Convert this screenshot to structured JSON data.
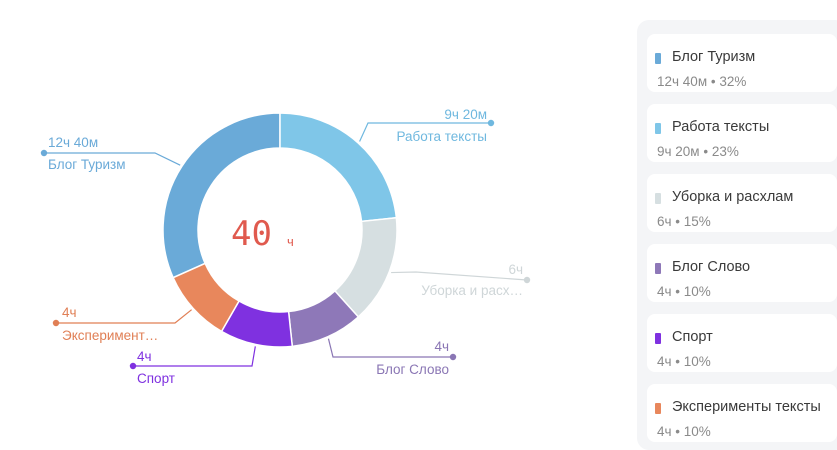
{
  "chart_data": {
    "type": "pie",
    "variant": "donut",
    "total": {
      "number": "40",
      "unit": "ч"
    },
    "segments": [
      {
        "name": "Блог Туризм",
        "label": "Блог Туризм",
        "hours": 12.67,
        "duration": "12ч 40м",
        "percent": 32,
        "color": "#6aaad8",
        "label_color": "#6aaad8"
      },
      {
        "name": "Работа тексты",
        "label": "Работа тексты",
        "hours": 9.33,
        "duration": "9ч 20м",
        "percent": 23,
        "color": "#7fc6e8",
        "label_color": "#6fb8df"
      },
      {
        "name": "Уборка и расхлам",
        "label": "Уборка и расх…",
        "hours": 6,
        "duration": "6ч",
        "percent": 15,
        "color": "#d6dfe1",
        "label_color": "#cfd6d8"
      },
      {
        "name": "Блог Слово",
        "label": "Блог Слово",
        "hours": 4,
        "duration": "4ч",
        "percent": 10,
        "color": "#8e78b8",
        "label_color": "#8a76b4"
      },
      {
        "name": "Спорт",
        "label": "Спорт",
        "hours": 4,
        "duration": "4ч",
        "percent": 10,
        "color": "#7f31e0",
        "label_color": "#7f31e0"
      },
      {
        "name": "Эксперименты тексты",
        "label": "Эксперимент…",
        "hours": 4,
        "duration": "4ч",
        "percent": 10,
        "color": "#e8875c",
        "label_color": "#e07f55"
      }
    ]
  },
  "legend": [
    {
      "name": "Блог Туризм",
      "value": "12ч 40м • 32%",
      "color": "#6aaad8"
    },
    {
      "name": "Работа тексты",
      "value": "9ч 20м • 23%",
      "color": "#7fc6e8"
    },
    {
      "name": "Уборка и расхлам",
      "value": "6ч • 15%",
      "color": "#d6dfe1"
    },
    {
      "name": "Блог Слово",
      "value": "4ч • 10%",
      "color": "#8e78b8"
    },
    {
      "name": "Спорт",
      "value": "4ч • 10%",
      "color": "#7f31e0"
    },
    {
      "name": "Эксперименты тексты",
      "value": "4ч • 10%",
      "color": "#e8875c"
    }
  ]
}
